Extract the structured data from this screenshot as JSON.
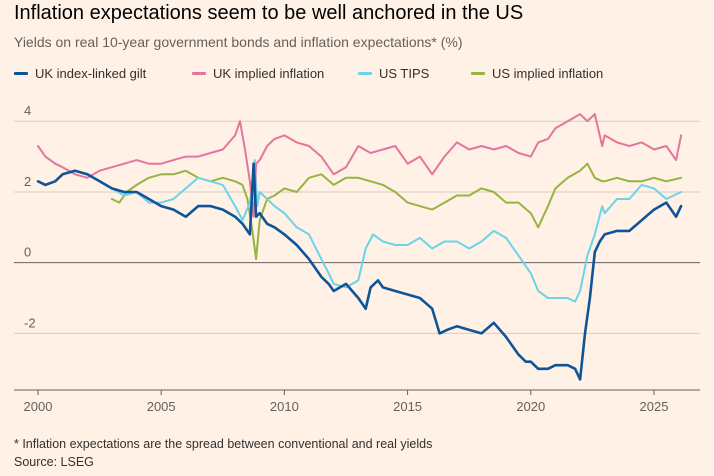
{
  "title": "Inflation expectations seem to be well anchored in the US",
  "subtitle": "Yields on real 10-year government bonds and inflation expectations* (%)",
  "footnote": "* Inflation expectations are the spread between conventional and real yields",
  "source": "Source: LSEG",
  "colors": {
    "uk_gilt": "#0f5499",
    "uk_inflation": "#e3769c",
    "us_tips": "#6ad4e8",
    "us_inflation": "#96b43f",
    "grid": "#d8ccc1",
    "zero": "#66605c"
  },
  "chart_data": {
    "type": "line",
    "title": "Inflation expectations seem to be well anchored in the US",
    "subtitle": "Yields on real 10-year government bonds and inflation expectations* (%)",
    "xlabel": "",
    "ylabel": "",
    "xlim": [
      2000,
      2026.3
    ],
    "ylim": [
      -3.6,
      4.6
    ],
    "xticks": [
      "2000",
      "2005",
      "2010",
      "2015",
      "2020",
      "2025"
    ],
    "yticks": [
      "4",
      "2",
      "0",
      "-2"
    ],
    "grid": true,
    "legend": "top",
    "series": [
      {
        "name": "UK index-linked gilt",
        "color": "#0f5499",
        "x": [
          2000,
          2000.3,
          2000.7,
          2001,
          2001.5,
          2002,
          2002.5,
          2003,
          2003.5,
          2004,
          2004.5,
          2005,
          2005.5,
          2006,
          2006.5,
          2007,
          2007.5,
          2008,
          2008.3,
          2008.6,
          2008.75,
          2008.85,
          2009,
          2009.3,
          2009.6,
          2010,
          2010.5,
          2011,
          2011.5,
          2011.8,
          2012,
          2012.5,
          2013,
          2013.3,
          2013.5,
          2013.8,
          2014,
          2014.5,
          2015,
          2015.5,
          2016,
          2016.3,
          2016.6,
          2017,
          2017.5,
          2018,
          2018.5,
          2019,
          2019.5,
          2019.8,
          2020,
          2020.3,
          2020.7,
          2021,
          2021.5,
          2021.8,
          2022,
          2022.2,
          2022.4,
          2022.6,
          2022.8,
          2023,
          2023.5,
          2024,
          2024.5,
          2025,
          2025.5,
          2025.9,
          2026.1
        ],
        "values": [
          2.3,
          2.2,
          2.3,
          2.5,
          2.6,
          2.5,
          2.3,
          2.1,
          2.0,
          2.0,
          1.8,
          1.6,
          1.5,
          1.3,
          1.6,
          1.6,
          1.5,
          1.3,
          1.1,
          0.8,
          2.8,
          1.3,
          1.4,
          1.1,
          1.0,
          0.8,
          0.5,
          0.1,
          -0.4,
          -0.6,
          -0.8,
          -0.6,
          -1.0,
          -1.3,
          -0.7,
          -0.5,
          -0.7,
          -0.8,
          -0.9,
          -1.0,
          -1.3,
          -2.0,
          -1.9,
          -1.8,
          -1.9,
          -2.0,
          -1.7,
          -2.1,
          -2.6,
          -2.8,
          -2.8,
          -3.0,
          -3.0,
          -2.9,
          -2.9,
          -3.0,
          -3.3,
          -2.0,
          -1.0,
          0.3,
          0.6,
          0.8,
          0.9,
          0.9,
          1.2,
          1.5,
          1.7,
          1.3,
          1.6
        ]
      },
      {
        "name": "UK implied inflation",
        "color": "#e3769c",
        "x": [
          2000,
          2000.3,
          2000.7,
          2001,
          2001.5,
          2002,
          2002.5,
          2003,
          2003.5,
          2004,
          2004.5,
          2005,
          2005.5,
          2006,
          2006.5,
          2007,
          2007.5,
          2008,
          2008.2,
          2008.4,
          2008.6,
          2008.75,
          2008.85,
          2009,
          2009.3,
          2009.6,
          2010,
          2010.5,
          2011,
          2011.5,
          2012,
          2012.5,
          2013,
          2013.5,
          2014,
          2014.5,
          2015,
          2015.5,
          2016,
          2016.5,
          2017,
          2017.5,
          2018,
          2018.5,
          2019,
          2019.5,
          2020,
          2020.3,
          2020.7,
          2021,
          2021.5,
          2022,
          2022.3,
          2022.6,
          2022.9,
          2023,
          2023.5,
          2024,
          2024.5,
          2025,
          2025.5,
          2025.9,
          2026.1
        ],
        "values": [
          3.3,
          3.0,
          2.8,
          2.7,
          2.5,
          2.4,
          2.6,
          2.7,
          2.8,
          2.9,
          2.8,
          2.8,
          2.9,
          3.0,
          3.0,
          3.1,
          3.2,
          3.6,
          4.0,
          3.2,
          2.3,
          1.3,
          2.8,
          2.9,
          3.3,
          3.5,
          3.6,
          3.4,
          3.3,
          3.0,
          2.5,
          2.7,
          3.3,
          3.1,
          3.2,
          3.3,
          2.8,
          3.0,
          2.5,
          3.0,
          3.4,
          3.2,
          3.3,
          3.2,
          3.3,
          3.1,
          3.0,
          3.4,
          3.5,
          3.8,
          4.0,
          4.2,
          4.0,
          4.2,
          3.3,
          3.6,
          3.4,
          3.3,
          3.4,
          3.2,
          3.3,
          2.9,
          3.6
        ]
      },
      {
        "name": "US TIPS",
        "color": "#6ad4e8",
        "x": [
          2003,
          2003.5,
          2004,
          2004.5,
          2005,
          2005.5,
          2006,
          2006.5,
          2007,
          2007.5,
          2008,
          2008.3,
          2008.6,
          2008.8,
          2008.9,
          2009,
          2009.3,
          2009.6,
          2010,
          2010.5,
          2011,
          2011.5,
          2011.8,
          2012,
          2012.5,
          2013,
          2013.3,
          2013.6,
          2014,
          2014.5,
          2015,
          2015.5,
          2016,
          2016.5,
          2017,
          2017.5,
          2018,
          2018.5,
          2019,
          2019.5,
          2020,
          2020.3,
          2020.7,
          2021,
          2021.5,
          2021.8,
          2022,
          2022.3,
          2022.6,
          2022.9,
          2023,
          2023.5,
          2024,
          2024.5,
          2025,
          2025.5,
          2026.1
        ],
        "values": [
          2.1,
          1.9,
          2.0,
          1.7,
          1.7,
          1.8,
          2.1,
          2.4,
          2.3,
          2.2,
          1.6,
          1.2,
          1.7,
          2.9,
          1.6,
          2.0,
          1.8,
          1.6,
          1.4,
          1.0,
          0.8,
          0.1,
          -0.3,
          -0.6,
          -0.7,
          -0.5,
          0.4,
          0.8,
          0.6,
          0.5,
          0.5,
          0.7,
          0.4,
          0.6,
          0.6,
          0.4,
          0.6,
          0.9,
          0.7,
          0.2,
          -0.3,
          -0.8,
          -1.0,
          -1.0,
          -1.0,
          -1.1,
          -0.8,
          0.2,
          0.8,
          1.6,
          1.4,
          1.8,
          1.8,
          2.2,
          2.1,
          1.8,
          2.0
        ]
      },
      {
        "name": "US implied inflation",
        "color": "#96b43f",
        "x": [
          2003,
          2003.3,
          2003.6,
          2004,
          2004.5,
          2005,
          2005.5,
          2006,
          2006.5,
          2007,
          2007.5,
          2008,
          2008.3,
          2008.5,
          2008.7,
          2008.85,
          2009,
          2009.3,
          2009.6,
          2010,
          2010.5,
          2011,
          2011.5,
          2012,
          2012.5,
          2013,
          2013.5,
          2014,
          2014.5,
          2015,
          2015.5,
          2016,
          2016.5,
          2017,
          2017.5,
          2018,
          2018.5,
          2019,
          2019.5,
          2020,
          2020.3,
          2020.7,
          2021,
          2021.5,
          2022,
          2022.3,
          2022.6,
          2022.9,
          2023,
          2023.5,
          2024,
          2024.5,
          2025,
          2025.5,
          2026.1
        ],
        "values": [
          1.8,
          1.7,
          2.0,
          2.2,
          2.4,
          2.5,
          2.5,
          2.6,
          2.4,
          2.3,
          2.4,
          2.3,
          2.2,
          1.8,
          0.9,
          0.1,
          1.2,
          1.8,
          1.9,
          2.1,
          2.0,
          2.4,
          2.5,
          2.2,
          2.4,
          2.4,
          2.3,
          2.2,
          2.0,
          1.7,
          1.6,
          1.5,
          1.7,
          1.9,
          1.9,
          2.1,
          2.0,
          1.7,
          1.7,
          1.4,
          1.0,
          1.6,
          2.1,
          2.4,
          2.6,
          2.8,
          2.4,
          2.3,
          2.3,
          2.4,
          2.3,
          2.3,
          2.4,
          2.3,
          2.4
        ]
      }
    ]
  }
}
